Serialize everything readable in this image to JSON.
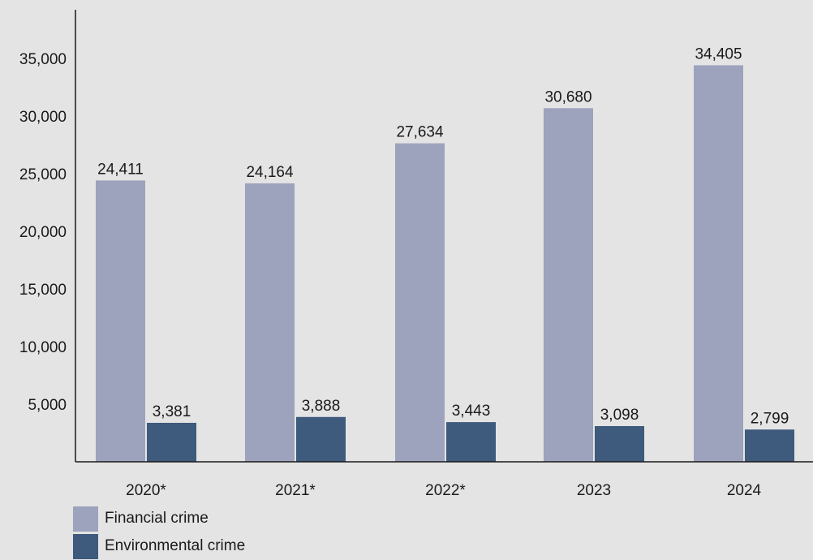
{
  "chart_data": {
    "type": "bar",
    "categories": [
      "2020*",
      "2021*",
      "2022*",
      "2023",
      "2024"
    ],
    "series": [
      {
        "name": "Financial crime",
        "values": [
          24411,
          24164,
          27634,
          30680,
          34405
        ],
        "color": "#9da2bd"
      },
      {
        "name": "Environmental crime",
        "values": [
          3381,
          3888,
          3443,
          3098,
          2799
        ],
        "color": "#3e5a7d"
      }
    ],
    "y_ticks": [
      5000,
      10000,
      15000,
      20000,
      25000,
      30000,
      35000
    ],
    "y_tick_labels": [
      "5,000",
      "10,000",
      "15,000",
      "20,000",
      "25,000",
      "30,000",
      "35,000"
    ],
    "data_labels": [
      [
        "24,411",
        "24,164",
        "27,634",
        "30,680",
        "34,405"
      ],
      [
        "3,381",
        "3,888",
        "3,443",
        "3,098",
        "2,799"
      ]
    ],
    "ylim": [
      0,
      38500
    ],
    "grid": false,
    "legend_position": "bottom-left"
  },
  "legend": {
    "items": [
      {
        "label": "Financial crime",
        "color": "#9da2bd"
      },
      {
        "label": "Environmental crime",
        "color": "#3e5a7d"
      }
    ]
  }
}
